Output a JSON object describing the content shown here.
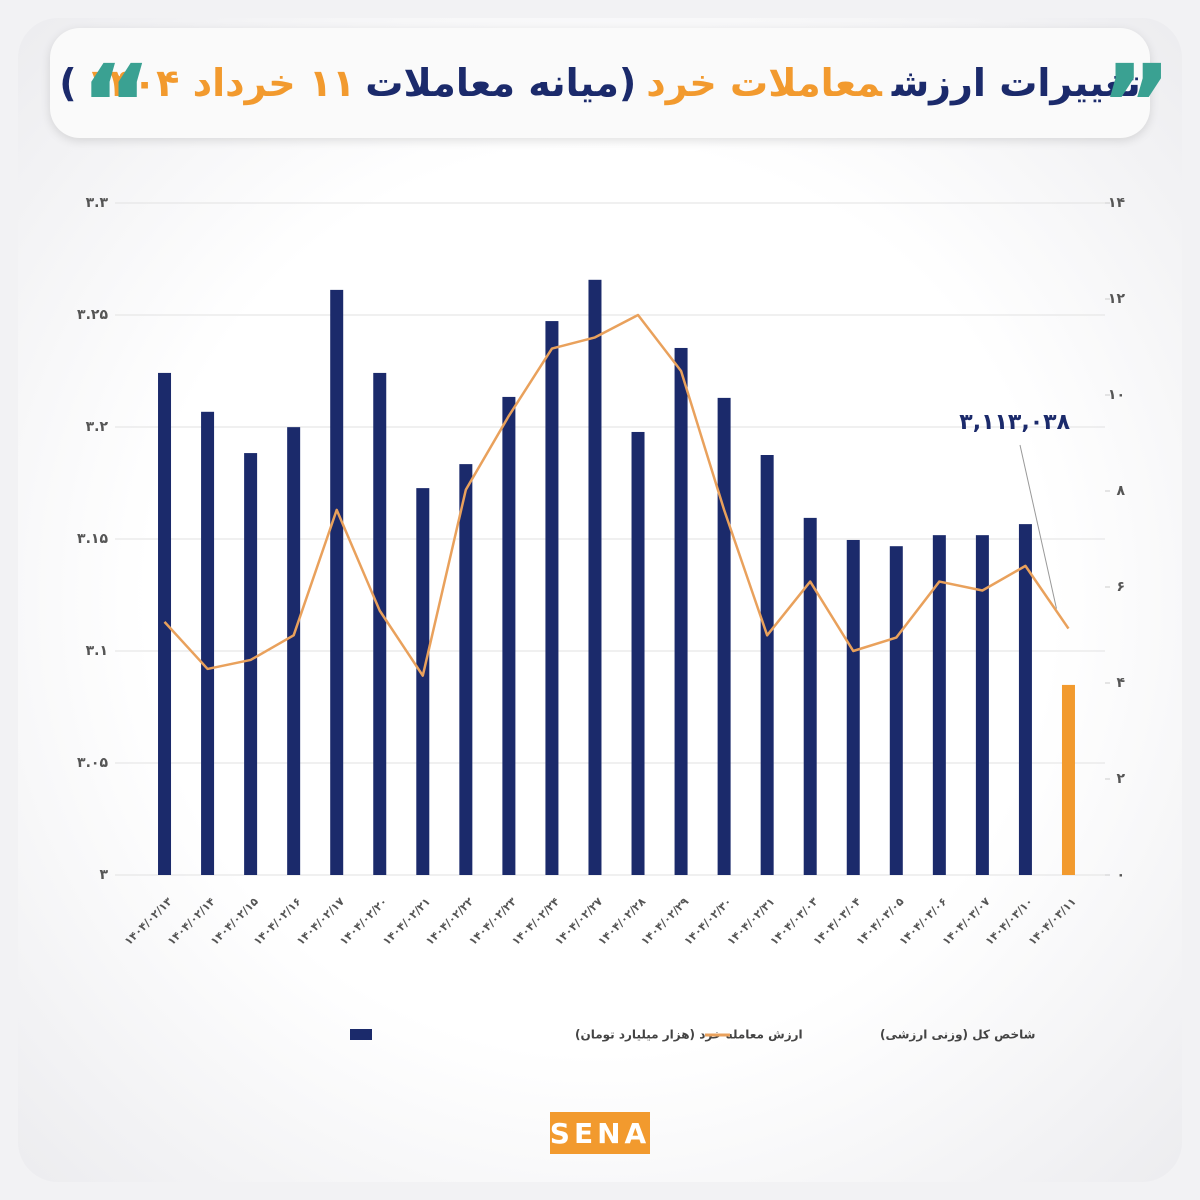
{
  "chart_data": {
    "type": "bar-line",
    "title": [
      {
        "text": "تغییرات ارزش",
        "color": "#1b2a6b"
      },
      {
        "text": "معاملات خرد",
        "color": "#f29a2e"
      },
      {
        "text": "(میانه معاملات",
        "color": "#1b2a6b"
      },
      {
        "text": "۱۱ خرداد ۱۴۰۴",
        "color": "#f29a2e"
      },
      {
        "text": ")",
        "color": "#1b2a6b"
      }
    ],
    "categories": [
      "۱۴۰۴/۰۲/۱۳",
      "۱۴۰۴/۰۲/۱۴",
      "۱۴۰۴/۰۲/۱۵",
      "۱۴۰۴/۰۲/۱۶",
      "۱۴۰۴/۰۲/۱۷",
      "۱۴۰۴/۰۲/۲۰",
      "۱۴۰۴/۰۲/۲۱",
      "۱۴۰۴/۰۲/۲۲",
      "۱۴۰۴/۰۲/۲۳",
      "۱۴۰۴/۰۲/۲۴",
      "۱۴۰۴/۰۲/۲۷",
      "۱۴۰۴/۰۲/۲۸",
      "۱۴۰۴/۰۲/۲۹",
      "۱۴۰۴/۰۲/۳۰",
      "۱۴۰۴/۰۲/۳۱",
      "۱۴۰۴/۰۳/۰۳",
      "۱۴۰۴/۰۳/۰۴",
      "۱۴۰۴/۰۳/۰۵",
      "۱۴۰۴/۰۳/۰۶",
      "۱۴۰۴/۰۳/۰۷",
      "۱۴۰۴/۰۳/۱۰",
      "۱۴۰۴/۰۳/۱۱"
    ],
    "series": [
      {
        "name": "ارزش معامله خرد (هزار میلیارد تومان)",
        "type": "bar",
        "axis": "y2",
        "color": "#1b2a6b",
        "colors": [
          "#1b2a6b",
          "#1b2a6b",
          "#1b2a6b",
          "#1b2a6b",
          "#1b2a6b",
          "#1b2a6b",
          "#1b2a6b",
          "#1b2a6b",
          "#1b2a6b",
          "#1b2a6b",
          "#1b2a6b",
          "#1b2a6b",
          "#1b2a6b",
          "#1b2a6b",
          "#1b2a6b",
          "#1b2a6b",
          "#1b2a6b",
          "#1b2a6b",
          "#1b2a6b",
          "#1b2a6b",
          "#1b2a6b",
          "#f29a2e"
        ],
        "values": [
          10.46,
          9.65,
          8.79,
          9.33,
          12.19,
          10.46,
          8.06,
          8.56,
          9.96,
          11.54,
          12.4,
          9.23,
          10.98,
          9.94,
          8.75,
          7.44,
          6.98,
          6.85,
          7.08,
          7.08,
          7.31,
          3.96
        ]
      },
      {
        "name": "شاخص کل (وزنی ارزشی)",
        "type": "line",
        "axis": "y",
        "color": "#e9a15c",
        "values": [
          3.113,
          3.092,
          3.096,
          3.107,
          3.163,
          3.118,
          3.089,
          3.172,
          3.205,
          3.235,
          3.24,
          3.25,
          3.225,
          3.163,
          3.107,
          3.131,
          3.1,
          3.106,
          3.131,
          3.127,
          3.138,
          3.11
        ]
      }
    ],
    "ylim": [
      3,
      3.3
    ],
    "yticks": [
      {
        "value": 3,
        "label": "۳"
      },
      {
        "value": 3.05,
        "label": "۳.۰۵"
      },
      {
        "value": 3.1,
        "label": "۳.۱"
      },
      {
        "value": 3.15,
        "label": "۳.۱۵"
      },
      {
        "value": 3.2,
        "label": "۳.۲"
      },
      {
        "value": 3.25,
        "label": "۳.۲۵"
      },
      {
        "value": 3.3,
        "label": "۳.۳"
      }
    ],
    "y2lim": [
      0,
      14
    ],
    "y2ticks": [
      {
        "value": 0,
        "label": "۰"
      },
      {
        "value": 2,
        "label": "۲"
      },
      {
        "value": 4,
        "label": "۴"
      },
      {
        "value": 6,
        "label": "۶"
      },
      {
        "value": 8,
        "label": "۸"
      },
      {
        "value": 10,
        "label": "۱۰"
      },
      {
        "value": 12,
        "label": "۱۲"
      },
      {
        "value": 14,
        "label": "۱۴"
      }
    ],
    "grid": true,
    "annotation": "۳,۱۱۳,۰۳۸",
    "logo": "SENA"
  }
}
